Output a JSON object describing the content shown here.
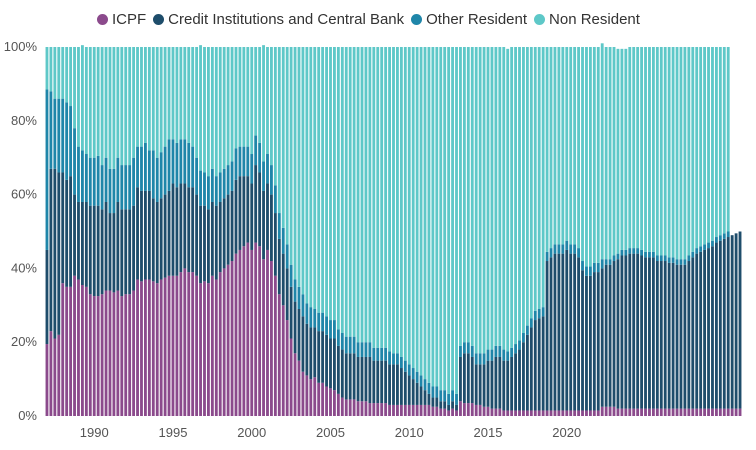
{
  "chart_data": {
    "type": "bar",
    "stacked": true,
    "percent_stacked": true,
    "title": "",
    "xlabel": "",
    "ylabel": "",
    "ylim": [
      0,
      100
    ],
    "legend_placement": "top",
    "y_ticks": [
      "0%",
      "20%",
      "40%",
      "60%",
      "80%",
      "100%"
    ],
    "x_ticks": [
      "1990",
      "1995",
      "2000",
      "2005",
      "2010",
      "2015",
      "2020"
    ],
    "x_tick_years": [
      1990,
      1995,
      2000,
      2005,
      2010,
      2015,
      2020
    ],
    "x_start": 1987.0,
    "x_step": 0.25,
    "series": [
      {
        "name": "ICPF",
        "color": "#8b4a8c",
        "values": [
          19.5,
          23,
          21,
          22,
          36,
          35,
          35,
          38,
          37,
          35.5,
          35,
          33,
          32.5,
          32.5,
          33,
          34,
          34,
          33.5,
          34,
          32.5,
          33,
          33,
          34,
          37,
          36.5,
          37,
          37,
          36.5,
          36,
          37,
          37.5,
          38,
          38,
          38,
          39,
          40,
          39,
          39,
          38,
          36,
          36.5,
          36,
          38,
          37,
          39,
          40,
          41,
          42,
          44,
          45,
          46,
          47,
          45,
          47,
          46,
          42.5,
          45,
          42,
          38,
          33,
          30,
          26,
          21,
          17,
          15,
          12,
          11,
          10,
          10.5,
          9,
          9,
          8,
          7.5,
          7,
          6,
          5,
          4.5,
          4.5,
          4.5,
          4,
          4,
          4,
          3.5,
          3.5,
          3.5,
          3.5,
          3.5,
          3,
          3,
          3,
          3,
          3,
          3,
          3,
          3,
          3,
          3,
          3,
          2.5,
          2.5,
          2,
          2,
          1.5,
          2,
          1.5,
          4,
          3.5,
          3.5,
          3.5,
          3,
          3,
          2.5,
          2.5,
          2,
          2,
          2,
          1.5,
          1.5,
          1.5,
          1.5,
          1.5,
          1.5,
          1.5,
          1.5,
          1.5,
          1.5,
          1.5,
          1.5,
          1.5,
          1.5,
          1.5,
          1.5,
          1.5,
          1.5,
          1.5,
          1.5,
          1.5,
          1.5,
          1.5,
          1.5,
          1.5,
          2.5,
          2.5,
          2.5,
          2.5,
          2,
          2,
          2,
          2,
          2,
          2,
          2,
          2,
          2,
          2,
          2,
          2,
          2,
          2,
          2,
          2,
          2,
          2,
          2,
          2,
          2,
          2,
          2,
          2,
          2,
          2,
          2,
          2,
          2,
          2,
          2,
          2
        ]
      },
      {
        "name": "Credit Institutions and Central Bank",
        "color": "#1e4d6b",
        "values": [
          25.5,
          44,
          46,
          44,
          30,
          29,
          30,
          22,
          21,
          22.5,
          23,
          24,
          24.5,
          24.5,
          23,
          24,
          21,
          21.5,
          24,
          23.5,
          23,
          23,
          23,
          25,
          24.5,
          24,
          24,
          22.5,
          22,
          22,
          22.5,
          23,
          25,
          24,
          24,
          23,
          23,
          23,
          22,
          21,
          20.5,
          20,
          20,
          20,
          19,
          19,
          19,
          19,
          20,
          20,
          19,
          18,
          18,
          21,
          20,
          18.5,
          18,
          18,
          17,
          15,
          14,
          14,
          14,
          14,
          14,
          15,
          14,
          14,
          13.5,
          14,
          14,
          14,
          13.5,
          14,
          13,
          13,
          12.5,
          12.5,
          12.5,
          12,
          12,
          12,
          12.5,
          11.5,
          11.5,
          11.5,
          11.5,
          11,
          11,
          11,
          10,
          9,
          8,
          7,
          6,
          5,
          4,
          3,
          2.5,
          2.5,
          2,
          2,
          1.5,
          2,
          1.5,
          12,
          13.5,
          13.5,
          12.5,
          11,
          11,
          11.5,
          12.5,
          13,
          14,
          14,
          13.5,
          13.5,
          14.5,
          15.5,
          16.5,
          18.5,
          20.5,
          22.5,
          24.5,
          25,
          25.5,
          40.5,
          41.5,
          42.5,
          42.5,
          42.5,
          43.5,
          42.5,
          42.5,
          41.5,
          38,
          36.5,
          36.5,
          37.5,
          37.5,
          37.5,
          38.5,
          38.5,
          39.5,
          40.5,
          41.5,
          41.5,
          42,
          42,
          42,
          41.5,
          41,
          41,
          41,
          40,
          40,
          40,
          39.5,
          39.5,
          39,
          39,
          39,
          40,
          41,
          42,
          42.5,
          43,
          43.5,
          44,
          45,
          45.5,
          46,
          46.5,
          47,
          47.5,
          48,
          47,
          47
        ]
      },
      {
        "name": "Other Resident",
        "color": "#1f86a9",
        "values": [
          43.5,
          21,
          19,
          20,
          20,
          21,
          19,
          18,
          15,
          14,
          13,
          13,
          13,
          13.5,
          12,
          12,
          12,
          12,
          12,
          12,
          12,
          12,
          13,
          11,
          12,
          13,
          11,
          13,
          12,
          12.5,
          13,
          14,
          12,
          12,
          12,
          12,
          12,
          11,
          10,
          9.5,
          9,
          9,
          9,
          8,
          8,
          8,
          8,
          8,
          8.5,
          8,
          8,
          8,
          8,
          8,
          8,
          8,
          8,
          8,
          7.5,
          7,
          7,
          6.5,
          6,
          6,
          6,
          6,
          5.5,
          5.5,
          5,
          5,
          5,
          5,
          5,
          5,
          4.5,
          4.5,
          4.5,
          4.5,
          4.5,
          4,
          4,
          4,
          4,
          3.5,
          3.5,
          3.5,
          3.5,
          3.5,
          3,
          3,
          3,
          3,
          3,
          3,
          3,
          3,
          3,
          3,
          3,
          3,
          3,
          3,
          3,
          3,
          3,
          3,
          3,
          3,
          3,
          3,
          3,
          3,
          3,
          3,
          3,
          3,
          3,
          2.5,
          2.5,
          2.5,
          2.5,
          2.5,
          2.5,
          2.5,
          2.5,
          2.5,
          2.5,
          2.5,
          2.5,
          2.5,
          2.5,
          2.5,
          2.5,
          2.5,
          2.5,
          2.5,
          2.5,
          2.5,
          2.5,
          2.5,
          2.5,
          2.5,
          1.5,
          1.5,
          1.5,
          1.5,
          1.5,
          1.5,
          1.5,
          1.5,
          1.5,
          1.5,
          1.5,
          1.5,
          1.5,
          1.5,
          1.5,
          1.5,
          1.5,
          1.5,
          1.5,
          1.5,
          1.5,
          1.5,
          1.5,
          1.5,
          1.5,
          1.5,
          1.5,
          1.5,
          1.5,
          1.5,
          1.5,
          1.5
        ]
      },
      {
        "name": "Non Resident",
        "color": "#5ec8c8",
        "values": [
          11.5,
          12,
          14,
          14,
          14,
          15,
          16,
          22,
          27,
          28.5,
          29,
          30,
          30,
          29.5,
          32,
          30,
          33,
          33,
          30,
          32,
          32,
          32,
          30,
          27,
          27,
          26,
          28,
          28,
          30,
          28.5,
          27,
          25,
          25,
          26,
          25,
          25,
          26,
          27,
          30,
          34,
          34,
          35,
          33,
          35,
          34,
          33,
          32,
          31,
          27.5,
          27,
          27,
          27,
          29,
          24,
          26,
          31.5,
          29,
          32,
          37.5,
          45,
          49,
          53.5,
          59,
          63,
          65,
          67,
          69.5,
          70.5,
          71,
          72,
          72,
          73,
          74,
          74,
          76.5,
          77.5,
          78.5,
          78.5,
          78.5,
          80,
          80,
          80,
          80,
          81.5,
          81.5,
          81.5,
          81.5,
          82.5,
          83,
          83,
          84,
          85,
          86,
          87,
          88,
          89,
          90,
          91,
          92,
          92,
          93,
          93,
          94,
          93,
          94,
          81,
          80,
          80,
          81,
          83,
          83,
          83,
          82,
          82,
          81,
          81,
          82,
          82,
          81.5,
          80.5,
          79.5,
          77.5,
          75.5,
          73.5,
          71.5,
          71,
          70.5,
          55.5,
          54.5,
          53.5,
          53.5,
          53.5,
          52.5,
          53.5,
          53.5,
          54.5,
          58,
          59.5,
          59.5,
          58.5,
          58.5,
          58.5,
          57.5,
          57.5,
          56.5,
          55.5,
          54.5,
          54.5,
          54.5,
          54.5,
          54.5,
          55,
          55.5,
          55.5,
          55.5,
          56.5,
          56.5,
          56.5,
          57,
          57,
          57.5,
          57.5,
          57.5,
          56.5,
          55.5,
          54.5,
          54,
          53.5,
          53,
          52.5,
          51.5,
          51,
          50.5,
          50,
          49.5,
          49,
          48.5,
          49.5,
          49.5
        ]
      }
    ]
  }
}
